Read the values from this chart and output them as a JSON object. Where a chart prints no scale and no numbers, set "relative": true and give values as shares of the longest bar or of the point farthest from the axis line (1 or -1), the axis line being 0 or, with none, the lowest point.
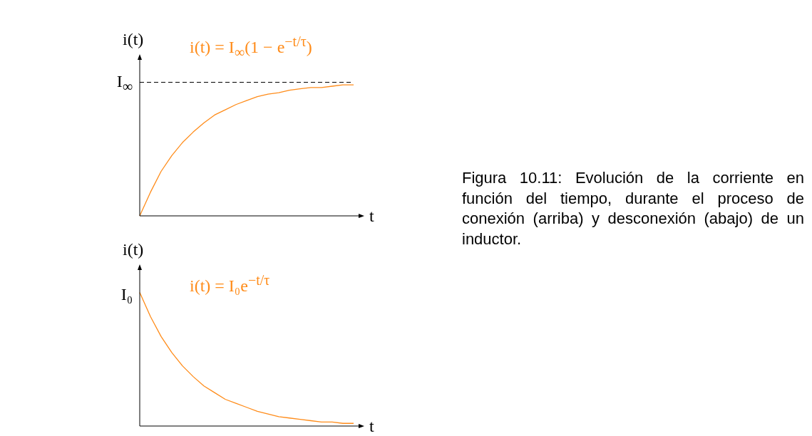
{
  "chart_data": [
    {
      "type": "line",
      "relative": true,
      "ylabel": "i(t)",
      "xlabel": "t",
      "categories": [
        null,
        null,
        null,
        null,
        null,
        null,
        null,
        null,
        null,
        null,
        null,
        null,
        null,
        null,
        null,
        null,
        null,
        null,
        null,
        null,
        null
      ],
      "series": [
        {
          "color": "#ff8c1a",
          "values": [
            0,
            0.18,
            0.34,
            0.46,
            0.56,
            0.64,
            0.71,
            0.77,
            0.81,
            0.85,
            0.88,
            0.91,
            0.93,
            0.94,
            0.96,
            0.97,
            0.98,
            0.98,
            0.99,
            1.0,
            1.0
          ]
        }
      ],
      "ref_lines": [
        {
          "axis": "y",
          "value": 1.02,
          "label": "I$_{∞}$",
          "color": "#000000",
          "line_style": "dashed"
        }
      ],
      "annotations": [
        "i(t) = I$_{∞}$(1 − e$^{−t/τ}$)"
      ]
    },
    {
      "type": "line",
      "relative": true,
      "ylabel": "i(t)",
      "xlabel": "t",
      "categories": [
        null,
        null,
        null,
        null,
        null,
        null,
        null,
        null,
        null,
        null,
        null,
        null,
        null,
        null,
        null,
        null,
        null,
        null,
        null,
        null,
        null
      ],
      "series": [
        {
          "color": "#ff8c1a",
          "values": [
            1,
            0.82,
            0.67,
            0.55,
            0.45,
            0.37,
            0.3,
            0.25,
            0.2,
            0.17,
            0.14,
            0.11,
            0.09,
            0.07,
            0.06,
            0.05,
            0.04,
            0.03,
            0.03,
            0.02,
            0.02
          ]
        }
      ],
      "annotations": [
        "I₀",
        "i(t) = I₀e$^{−t/τ}$"
      ]
    },
    {
      "type": "other",
      "annotations": [
        "Figura 10.11: Evolución de la corriente en función del tiempo, durante el proceso de conexión (arriba) y desconexión (abajo) de un inductor."
      ]
    }
  ]
}
